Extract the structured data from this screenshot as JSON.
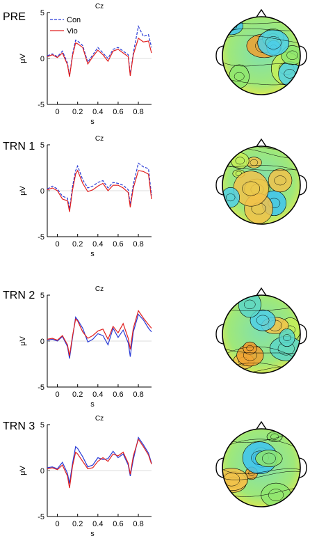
{
  "panels": [
    {
      "label": "PRE"
    },
    {
      "label": "TRN 1"
    },
    {
      "label": "TRN 2"
    },
    {
      "label": "TRN 3"
    }
  ],
  "colors": {
    "con": "#2a3bd6",
    "vio": "#e02020"
  },
  "chart_data": [
    {
      "type": "line",
      "title": "Cz",
      "xlabel": "s",
      "ylabel": "μV",
      "xlim": [
        -0.1,
        0.93
      ],
      "ylim": [
        -5,
        5
      ],
      "x_ticks": [
        "0",
        "0.2",
        "0.4",
        "0.6",
        "0.8"
      ],
      "y_ticks": [
        "5",
        "0",
        "-5"
      ],
      "legend": "top-left",
      "x": [
        -0.1,
        -0.05,
        0,
        0.05,
        0.1,
        0.12,
        0.15,
        0.18,
        0.2,
        0.25,
        0.3,
        0.35,
        0.4,
        0.45,
        0.5,
        0.55,
        0.6,
        0.65,
        0.7,
        0.72,
        0.75,
        0.8,
        0.85,
        0.9,
        0.93
      ],
      "series": [
        {
          "name": "Con",
          "style": "dashed",
          "values": [
            0.3,
            0.5,
            0.2,
            0.8,
            -0.5,
            -1.9,
            0.5,
            2.0,
            1.9,
            1.4,
            -0.4,
            0.4,
            1.2,
            0.6,
            0.0,
            1.0,
            1.2,
            0.8,
            0.4,
            -1.8,
            0.6,
            3.5,
            2.4,
            2.6,
            1.2
          ]
        },
        {
          "name": "Vio",
          "style": "solid",
          "values": [
            0.2,
            0.4,
            0.1,
            0.6,
            -0.7,
            -2.0,
            0.3,
            1.7,
            1.6,
            1.2,
            -0.6,
            0.2,
            0.9,
            0.4,
            -0.3,
            0.8,
            1.0,
            0.6,
            0.2,
            -1.9,
            0.4,
            2.2,
            1.8,
            1.9,
            0.6
          ]
        }
      ]
    },
    {
      "type": "line",
      "title": "Cz",
      "xlabel": "s",
      "ylabel": "μV",
      "xlim": [
        -0.1,
        0.93
      ],
      "ylim": [
        -5,
        5
      ],
      "x_ticks": [
        "0",
        "0.2",
        "0.4",
        "0.6",
        "0.8"
      ],
      "y_ticks": [
        "5",
        "0",
        "-5"
      ],
      "x": [
        -0.1,
        -0.05,
        0,
        0.05,
        0.1,
        0.12,
        0.15,
        0.18,
        0.2,
        0.25,
        0.3,
        0.35,
        0.4,
        0.45,
        0.5,
        0.55,
        0.6,
        0.65,
        0.7,
        0.72,
        0.75,
        0.8,
        0.85,
        0.9,
        0.93
      ],
      "series": [
        {
          "name": "Con",
          "style": "dashed",
          "values": [
            0.2,
            0.5,
            0.2,
            -0.6,
            -0.8,
            -2.0,
            0.5,
            2.2,
            2.7,
            1.2,
            0.3,
            0.5,
            0.9,
            1.1,
            0.3,
            0.9,
            0.8,
            0.6,
            0.1,
            -1.5,
            0.7,
            3.0,
            2.6,
            2.4,
            -0.5
          ]
        },
        {
          "name": "Vio",
          "style": "solid",
          "values": [
            0.1,
            0.3,
            0.0,
            -0.9,
            -1.1,
            -2.3,
            0.1,
            1.8,
            2.2,
            0.8,
            -0.1,
            0.1,
            0.5,
            0.8,
            0.0,
            0.6,
            0.6,
            0.3,
            -0.2,
            -1.8,
            0.3,
            2.2,
            2.1,
            1.8,
            -0.9
          ]
        }
      ]
    },
    {
      "type": "line",
      "title": "Cz",
      "xlabel": "s",
      "ylabel": "μV",
      "xlim": [
        -0.1,
        0.93
      ],
      "ylim": [
        -5,
        5
      ],
      "x_ticks": [
        "0",
        "0.2",
        "0.4",
        "0.6",
        "0.8"
      ],
      "y_ticks": [
        "5",
        "0",
        "-5"
      ],
      "x": [
        -0.1,
        -0.05,
        0,
        0.05,
        0.1,
        0.12,
        0.15,
        0.18,
        0.2,
        0.25,
        0.3,
        0.35,
        0.4,
        0.45,
        0.5,
        0.55,
        0.6,
        0.65,
        0.7,
        0.72,
        0.75,
        0.8,
        0.85,
        0.9,
        0.93
      ],
      "series": [
        {
          "name": "Con",
          "style": "solid",
          "values": [
            0.1,
            0.2,
            0.0,
            0.5,
            -0.6,
            -1.9,
            0.4,
            2.6,
            2.3,
            1.4,
            -0.1,
            0.2,
            0.8,
            0.6,
            -0.4,
            1.4,
            0.4,
            1.2,
            -0.2,
            -1.7,
            1.0,
            2.9,
            2.3,
            1.4,
            1.0
          ]
        },
        {
          "name": "Vio",
          "style": "solid",
          "values": [
            0.2,
            0.3,
            0.1,
            0.6,
            -0.4,
            -1.6,
            0.6,
            2.4,
            2.2,
            1.0,
            0.3,
            0.6,
            1.1,
            1.3,
            0.2,
            1.6,
            0.9,
            1.9,
            0.3,
            -0.9,
            1.4,
            3.3,
            2.5,
            1.8,
            1.4
          ]
        }
      ]
    },
    {
      "type": "line",
      "title": "Cz",
      "xlabel": "s",
      "ylabel": "μV",
      "xlim": [
        -0.1,
        0.93
      ],
      "ylim": [
        -5,
        5
      ],
      "x_ticks": [
        "0",
        "0.2",
        "0.4",
        "0.6",
        "0.8"
      ],
      "y_ticks": [
        "5",
        "0",
        "-5"
      ],
      "x": [
        -0.1,
        -0.05,
        0,
        0.05,
        0.1,
        0.12,
        0.15,
        0.18,
        0.2,
        0.25,
        0.3,
        0.35,
        0.4,
        0.45,
        0.5,
        0.55,
        0.6,
        0.65,
        0.7,
        0.72,
        0.75,
        0.8,
        0.85,
        0.9,
        0.93
      ],
      "series": [
        {
          "name": "Con",
          "style": "solid",
          "values": [
            0.3,
            0.4,
            0.2,
            0.9,
            -0.3,
            -1.4,
            0.8,
            2.6,
            2.4,
            1.5,
            0.4,
            0.6,
            1.4,
            1.2,
            1.3,
            2.1,
            1.4,
            1.8,
            0.6,
            -0.6,
            1.2,
            3.6,
            2.8,
            1.9,
            0.8
          ]
        },
        {
          "name": "Vio",
          "style": "solid",
          "values": [
            0.2,
            0.3,
            0.1,
            0.6,
            -0.6,
            -1.9,
            0.5,
            2.0,
            1.8,
            1.0,
            0.2,
            0.3,
            1.0,
            1.4,
            1.0,
            1.8,
            1.6,
            2.0,
            0.8,
            -0.4,
            1.6,
            3.4,
            2.6,
            1.7,
            0.7
          ]
        }
      ]
    }
  ]
}
